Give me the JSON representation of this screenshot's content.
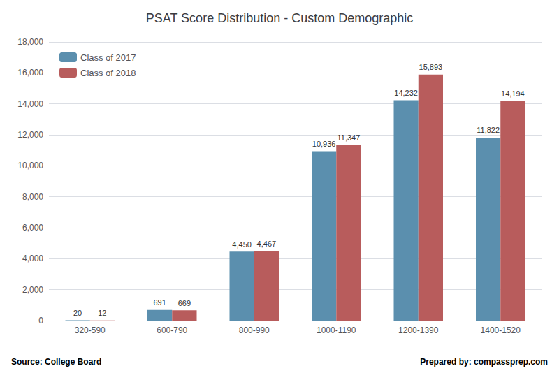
{
  "chart_data": {
    "type": "bar",
    "title": "PSAT Score Distribution - Custom Demographic",
    "categories": [
      "320-590",
      "600-790",
      "800-990",
      "1000-1190",
      "1200-1390",
      "1400-1520"
    ],
    "series": [
      {
        "name": "Class of 2017",
        "color": "#5b8fae",
        "values": [
          20,
          691,
          4450,
          10936,
          14232,
          11822
        ],
        "value_labels": [
          "20",
          "691",
          "4,450",
          "10,936",
          "14,232",
          "11,822"
        ]
      },
      {
        "name": "Class of 2018",
        "color": "#b85c5c",
        "values": [
          12,
          669,
          4467,
          11347,
          15893,
          14194
        ],
        "value_labels": [
          "12",
          "669",
          "4,467",
          "11,347",
          "15,893",
          "14,194"
        ]
      }
    ],
    "ylim": [
      0,
      18000
    ],
    "yticks": [
      0,
      {
        "value": 2000,
        "label": "2,000"
      },
      {
        "value": 4000,
        "label": "4,000"
      },
      {
        "value": 6000,
        "label": "6,000"
      },
      {
        "value": 8000,
        "label": "8,000"
      },
      {
        "value": 10000,
        "label": "10,000"
      },
      {
        "value": 12000,
        "label": "12,000"
      },
      {
        "value": 14000,
        "label": "14,000"
      },
      {
        "value": 16000,
        "label": "16,000"
      },
      {
        "value": 18000,
        "label": "18,000"
      }
    ],
    "grid": true,
    "legend": "upper left",
    "data_labels": true,
    "annotations": [
      "Source: College Board",
      "Prepared by: compassprep.com"
    ]
  }
}
